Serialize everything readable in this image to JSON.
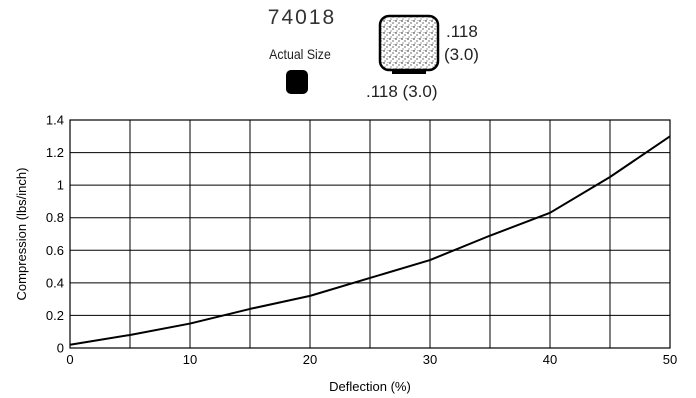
{
  "header": {
    "part_number": "74018",
    "actual_size_label": "Actual Size",
    "dimension_height": ".118",
    "dimension_height_mm": "(3.0)",
    "dimension_width": ".118 (3.0)"
  },
  "colors": {
    "line": "#000000",
    "grid": "#000000",
    "background": "#ffffff",
    "swatch": "#000000"
  },
  "chart_data": {
    "type": "line",
    "title": "",
    "xlabel": "Deflection (%)",
    "ylabel": "Compression (lbs/inch)",
    "xlim": [
      0,
      50
    ],
    "ylim": [
      0,
      1.4
    ],
    "x_ticks": [
      "0",
      "10",
      "20",
      "30",
      "40",
      "50"
    ],
    "y_ticks": [
      "0",
      "0.2",
      "0.4",
      "0.6",
      "0.8",
      "1",
      "1.2",
      "1.4"
    ],
    "grid": true,
    "series": [
      {
        "x": [
          0,
          5,
          10,
          15,
          20,
          25,
          30,
          35,
          40,
          45,
          50
        ],
        "y": [
          0.02,
          0.08,
          0.15,
          0.24,
          0.32,
          0.43,
          0.54,
          0.69,
          0.83,
          1.05,
          1.3
        ]
      }
    ]
  }
}
